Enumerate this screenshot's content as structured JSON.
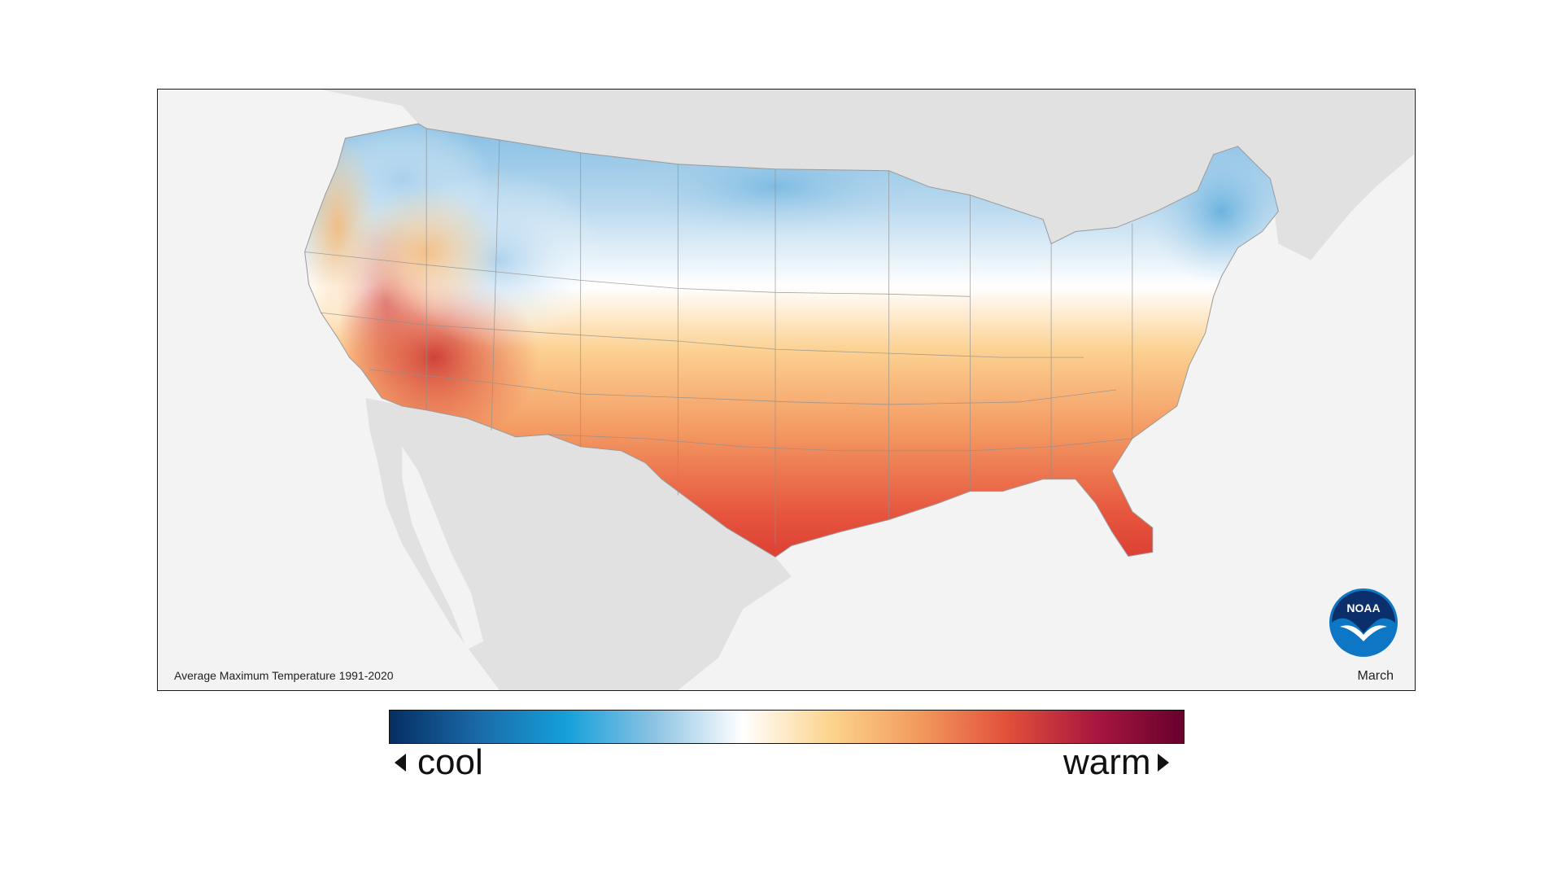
{
  "map": {
    "caption": "Average Maximum Temperature 1991-2020",
    "month": "March",
    "logo_text": "NOAA",
    "background_land": "#e1e1e1",
    "background_water": "#f3f3f3"
  },
  "legend": {
    "low_label": "cool",
    "high_label": "warm",
    "colors": [
      "#062e63",
      "#1a6aa8",
      "#15a0da",
      "#8cc3e3",
      "#ffffff",
      "#fcd48c",
      "#f29a5e",
      "#e2503b",
      "#a8173f",
      "#67002d"
    ]
  },
  "icons": {
    "cool_arrow": "triangle-left-icon",
    "warm_arrow": "triangle-right-icon",
    "agency_logo": "noaa-logo-icon"
  }
}
